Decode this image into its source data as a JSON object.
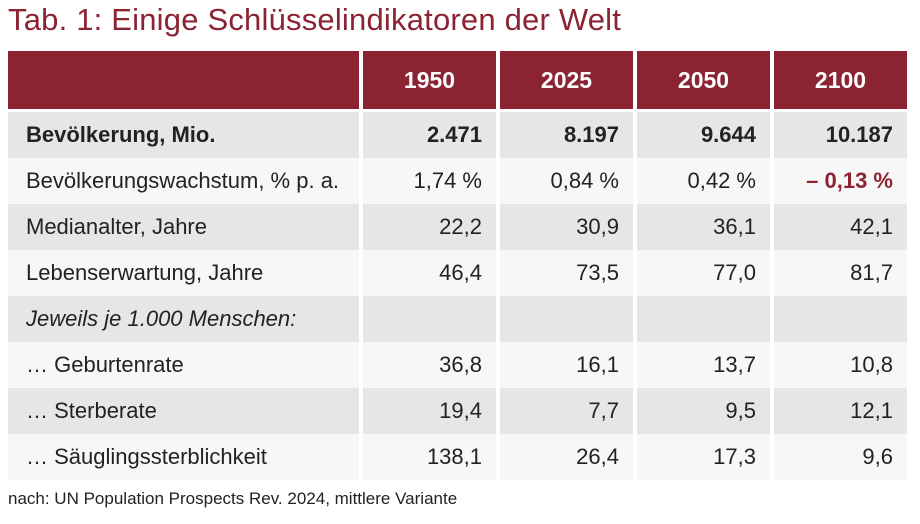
{
  "title": "Tab. 1: Einige Schlüsselindikatoren der Welt",
  "table": {
    "columns": [
      "",
      "1950",
      "2025",
      "2050",
      "2100"
    ],
    "rows": [
      {
        "label": "Bevölkerung, Mio.",
        "values": [
          "2.471",
          "8.197",
          "9.644",
          "10.187"
        ]
      },
      {
        "label": "Bevölkerungswachstum, % p. a.",
        "values": [
          "1,74 %",
          "0,84 %",
          "0,42 %",
          "– 0,13 %"
        ]
      },
      {
        "label": "Medianalter, Jahre",
        "values": [
          "22,2",
          "30,9",
          "36,1",
          "42,1"
        ]
      },
      {
        "label": "Lebenserwartung, Jahre",
        "values": [
          "46,4",
          "73,5",
          "77,0",
          "81,7"
        ]
      },
      {
        "label": "Jeweils je 1.000 Menschen:",
        "values": [
          "",
          "",
          "",
          ""
        ]
      },
      {
        "label": "… Geburtenrate",
        "values": [
          "36,8",
          "16,1",
          "13,7",
          "10,8"
        ]
      },
      {
        "label": "… Sterberate",
        "values": [
          "19,4",
          "7,7",
          "9,5",
          "12,1"
        ]
      },
      {
        "label": "… Säuglingssterblichkeit",
        "values": [
          "138,1",
          "26,4",
          "17,3",
          "9,6"
        ]
      }
    ]
  },
  "source": "nach: UN Population Prospects Rev. 2024, mittlere Variante",
  "colors": {
    "accent": "#8b2332",
    "row_gray": "#e6e6e6",
    "row_light": "#f7f7f7"
  }
}
